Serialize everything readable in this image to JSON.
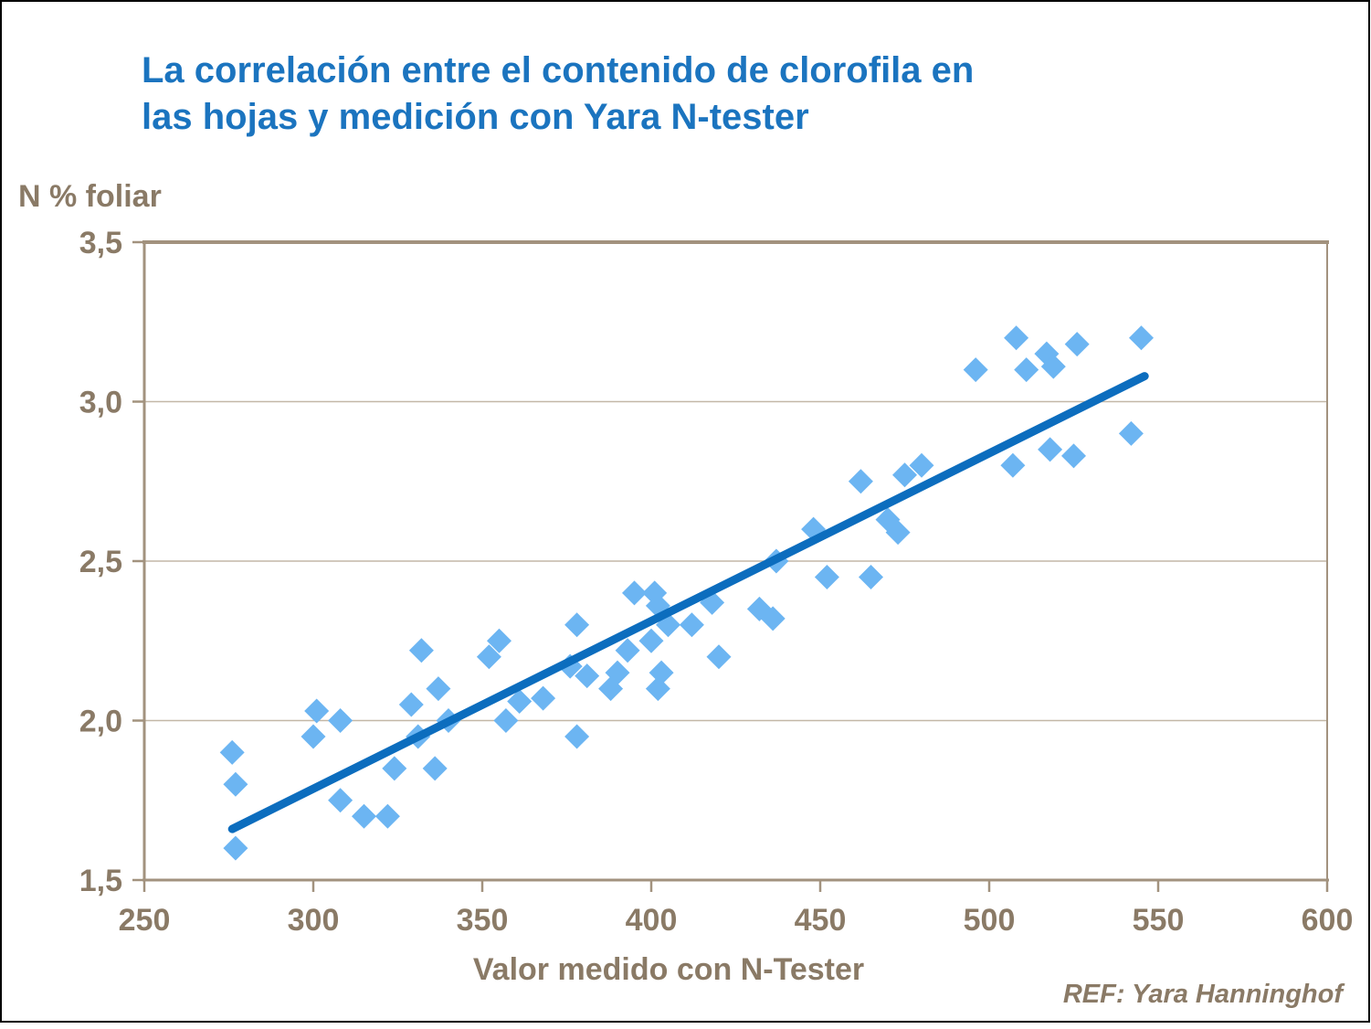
{
  "slide": {
    "title_lines": [
      "La correlación entre el contenido de clorofila en",
      "las hojas y medición con Yara N-tester"
    ],
    "ref": "REF: Yara Hanninghof"
  },
  "chart_data": {
    "type": "scatter",
    "title": "La correlación entre el contenido de clorofila en las hojas y medición con Yara N-tester",
    "xlabel": "Valor medido con N-Tester",
    "ylabel": "N % foliar",
    "xlim": [
      250,
      600
    ],
    "ylim": [
      1.5,
      3.5
    ],
    "x_ticks": [
      250,
      300,
      350,
      400,
      450,
      500,
      550,
      600
    ],
    "y_ticks": [
      1.5,
      2.0,
      2.5,
      3.0,
      3.5
    ],
    "y_tick_labels": [
      "1,5",
      "2,0",
      "2,5",
      "3,0",
      "3,5"
    ],
    "grid": "horizontal gridlines at y ticks",
    "legend": "none",
    "marker": "diamond",
    "points": [
      [
        276,
        1.9
      ],
      [
        277,
        1.8
      ],
      [
        277,
        1.6
      ],
      [
        300,
        1.95
      ],
      [
        301,
        2.03
      ],
      [
        308,
        2.0
      ],
      [
        308,
        1.75
      ],
      [
        315,
        1.7
      ],
      [
        322,
        1.7
      ],
      [
        324,
        1.85
      ],
      [
        329,
        2.05
      ],
      [
        331,
        1.95
      ],
      [
        332,
        2.22
      ],
      [
        336,
        1.85
      ],
      [
        337,
        2.1
      ],
      [
        340,
        2.0
      ],
      [
        352,
        2.2
      ],
      [
        355,
        2.25
      ],
      [
        357,
        2.0
      ],
      [
        361,
        2.06
      ],
      [
        368,
        2.07
      ],
      [
        376,
        2.17
      ],
      [
        378,
        2.3
      ],
      [
        378,
        1.95
      ],
      [
        381,
        2.14
      ],
      [
        388,
        2.1
      ],
      [
        390,
        2.15
      ],
      [
        393,
        2.22
      ],
      [
        395,
        2.4
      ],
      [
        400,
        2.25
      ],
      [
        401,
        2.4
      ],
      [
        402,
        2.36
      ],
      [
        402,
        2.1
      ],
      [
        403,
        2.15
      ],
      [
        405,
        2.3
      ],
      [
        412,
        2.3
      ],
      [
        418,
        2.37
      ],
      [
        420,
        2.2
      ],
      [
        432,
        2.35
      ],
      [
        436,
        2.32
      ],
      [
        437,
        2.5
      ],
      [
        448,
        2.6
      ],
      [
        452,
        2.45
      ],
      [
        462,
        2.75
      ],
      [
        465,
        2.45
      ],
      [
        470,
        2.63
      ],
      [
        473,
        2.59
      ],
      [
        475,
        2.77
      ],
      [
        480,
        2.8
      ],
      [
        496,
        3.1
      ],
      [
        507,
        2.8
      ],
      [
        508,
        3.2
      ],
      [
        511,
        3.1
      ],
      [
        517,
        3.15
      ],
      [
        519,
        3.11
      ],
      [
        518,
        2.85
      ],
      [
        525,
        2.83
      ],
      [
        526,
        3.18
      ],
      [
        542,
        2.9
      ],
      [
        545,
        3.2
      ]
    ],
    "trendline": {
      "x1": 276,
      "y1": 1.66,
      "x2": 546,
      "y2": 3.08
    },
    "colors": {
      "point": "#6cb5f2",
      "trend": "#0c6dbe",
      "axis": "#a2927e",
      "grid": "#c3b7a7",
      "text": "#8a7a66",
      "title": "#1b74bf"
    }
  }
}
